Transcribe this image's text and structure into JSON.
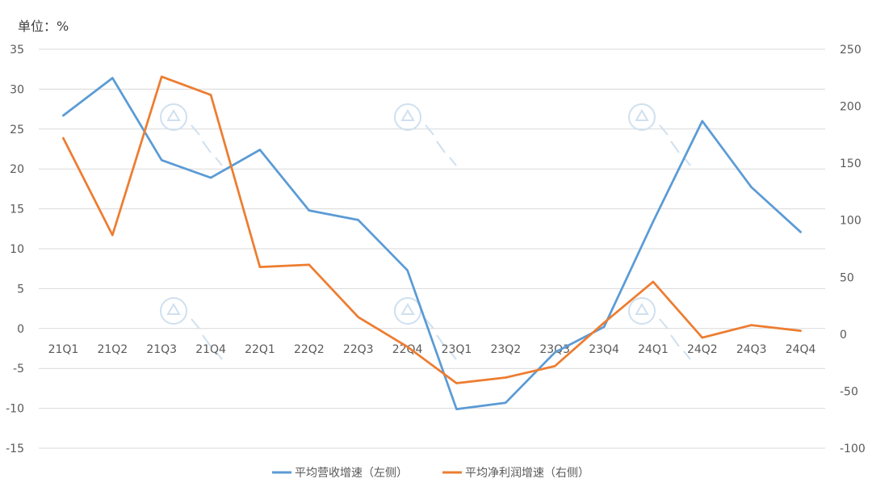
{
  "unit_label": "单位：%",
  "chart_data": {
    "type": "line",
    "categories": [
      "21Q1",
      "21Q2",
      "21Q3",
      "21Q4",
      "22Q1",
      "22Q2",
      "22Q3",
      "22Q4",
      "23Q1",
      "23Q2",
      "23Q3",
      "23Q4",
      "24Q1",
      "24Q2",
      "24Q3",
      "24Q4"
    ],
    "left_axis": {
      "ylim": [
        -15,
        35
      ],
      "ticks": [
        35,
        30,
        25,
        20,
        15,
        10,
        5,
        0,
        -5,
        -10,
        -15
      ]
    },
    "right_axis": {
      "ylim": [
        -100,
        250
      ],
      "ticks": [
        250,
        200,
        150,
        100,
        50,
        0,
        -50,
        -100
      ]
    },
    "grid": true,
    "legend_position": "bottom",
    "series": [
      {
        "name": "平均营收增速（左侧）",
        "axis": "left",
        "color": "#5b9bd5",
        "values": [
          26.7,
          31.4,
          21.1,
          18.9,
          22.4,
          14.8,
          13.6,
          7.3,
          -10.1,
          -9.3,
          -3.0,
          0.2,
          13.4,
          26.0,
          17.7,
          12.1
        ]
      },
      {
        "name": "平均净利润增速（右侧）",
        "axis": "right",
        "color": "#ed7d31",
        "values": [
          172,
          87,
          226,
          210,
          59,
          61,
          15,
          -11,
          -43,
          -38,
          -28,
          10,
          46,
          -3,
          8,
          3
        ]
      }
    ]
  }
}
